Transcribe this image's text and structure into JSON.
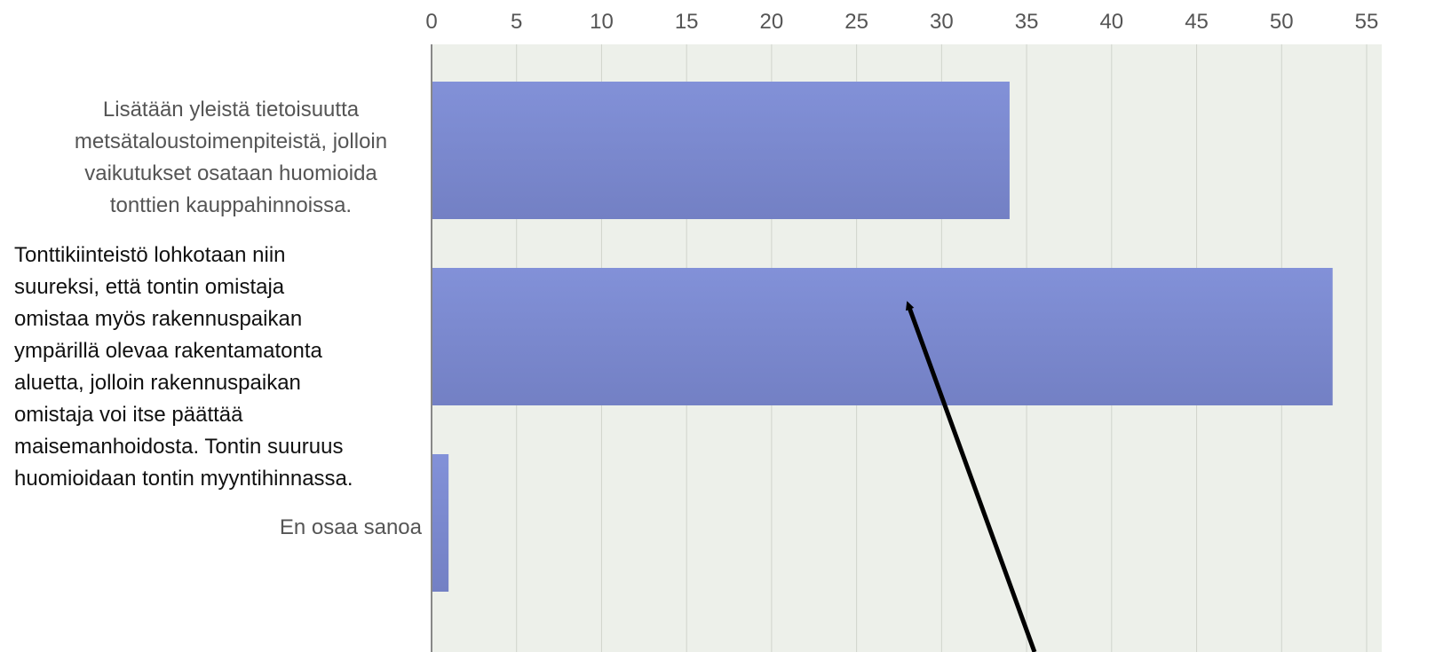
{
  "chart_data": {
    "type": "bar",
    "orientation": "horizontal",
    "categories": [
      "Lisätään yleistä tietoisuutta\nmetsätaloustoimenpiteistä, jolloin\nvaikutukset osataan huomioida\ntonttien kauppahinnoissa.",
      "Tonttikiinteistö lohkotaan niin\nsuureksi, että tontin omistaja\nomistaa myös rakennuspaikan\nympärillä olevaa rakentamatonta\naluetta, jolloin rakennuspaikan\nomistaja voi itse päättää\nmaisemanhoidosta. Tontin suuruus\nhuomioidaan tontin myyntihinnassa.",
      "En osaa sanoa"
    ],
    "values": [
      34,
      53,
      1
    ],
    "xlim": [
      0,
      55
    ],
    "x_ticks": [
      "0",
      "5",
      "10",
      "15",
      "20",
      "25",
      "30",
      "35",
      "40",
      "45",
      "50",
      "55"
    ],
    "x_axis_position": "top",
    "grid": true,
    "legend": "none",
    "colors": {
      "bar_top": "#8291d8",
      "bar_bottom": "#7380c4",
      "plot_background": "#edf0ea",
      "gridline": "#d0d4cc",
      "axis": "#888888",
      "annotation_arrow": "#000000"
    },
    "annotations": [
      {
        "type": "arrow",
        "points_to_category": 1
      }
    ]
  }
}
